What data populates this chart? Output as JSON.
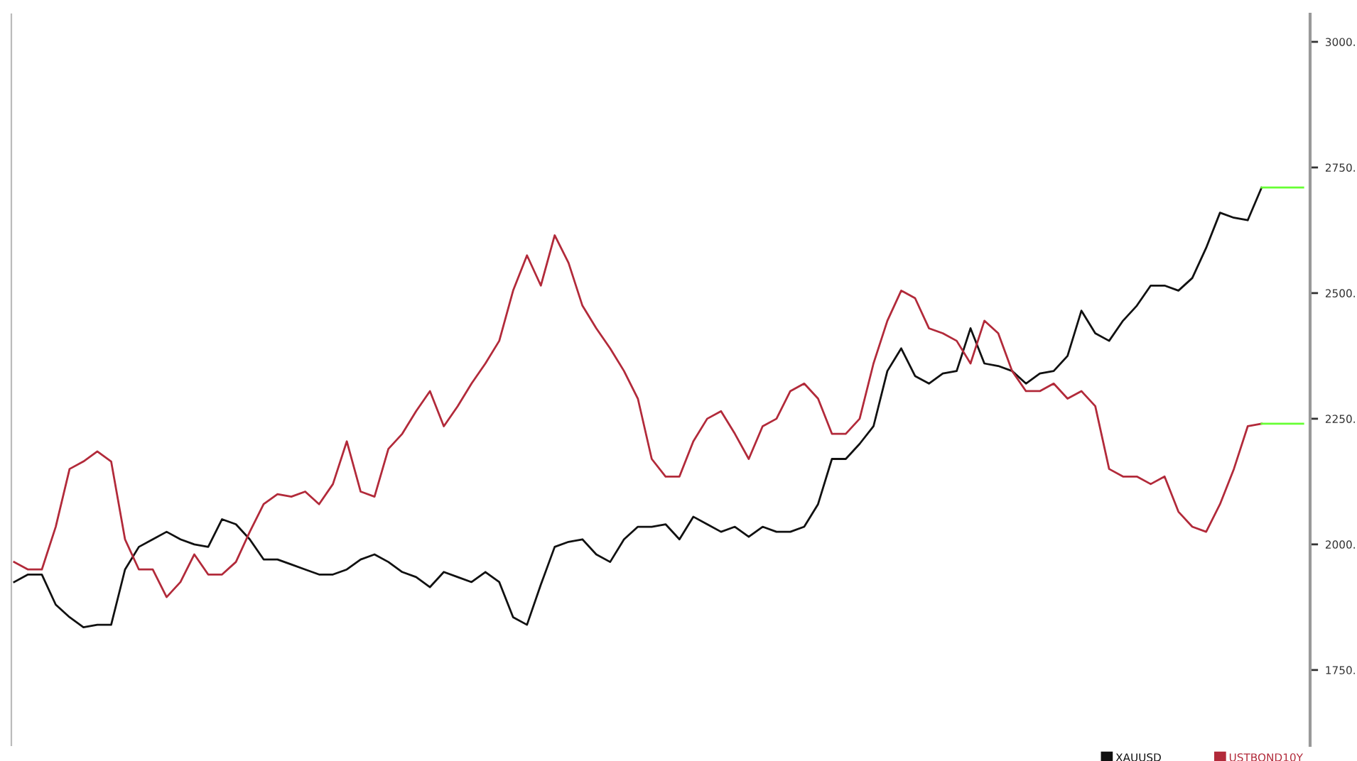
{
  "chart_data": {
    "type": "line",
    "categories": [
      null,
      null,
      null,
      null,
      null,
      null,
      null,
      null,
      null,
      null,
      null,
      null,
      null,
      null,
      null,
      null,
      null,
      null,
      null,
      null,
      null,
      null,
      null,
      null,
      null,
      null,
      null,
      null,
      null,
      null,
      null,
      null,
      null,
      null,
      null,
      null,
      null,
      null,
      null,
      null,
      null,
      null,
      null,
      null,
      null,
      null,
      null,
      null,
      null,
      null,
      null,
      null,
      null,
      null,
      null,
      null,
      null,
      null,
      null,
      null,
      null,
      null,
      null,
      null,
      null,
      null,
      null,
      null,
      null,
      null,
      null,
      null,
      null,
      null,
      null,
      null,
      null,
      null,
      null,
      null,
      null,
      null,
      null,
      null,
      null,
      null,
      null,
      null,
      null,
      null,
      null,
      null,
      null,
      null
    ],
    "series": [
      {
        "name": "XAUUSD",
        "color": "#111111",
        "values": [
          1925,
          1940,
          1940,
          1880,
          1855,
          1835,
          1840,
          1840,
          1950,
          1995,
          2010,
          2025,
          2010,
          2000,
          1995,
          2050,
          2040,
          2010,
          1970,
          1970,
          1960,
          1950,
          1940,
          1940,
          1950,
          1970,
          1980,
          1965,
          1945,
          1935,
          1915,
          1945,
          1935,
          1925,
          1945,
          1925,
          1855,
          1840,
          1920,
          1995,
          2005,
          2010,
          1980,
          1965,
          2010,
          2035,
          2035,
          2040,
          2010,
          2055,
          2040,
          2025,
          2035,
          2015,
          2035,
          2025,
          2025,
          2035,
          2080,
          2170,
          2170,
          2200,
          2235,
          2345,
          2390,
          2335,
          2320,
          2340,
          2345,
          2430,
          2360,
          2355,
          2345,
          2320,
          2340,
          2345,
          2375,
          2465,
          2420,
          2405,
          2445,
          2475,
          2515,
          2515,
          2505,
          2530,
          2590,
          2660,
          2650,
          2645,
          2710,
          null,
          null,
          null
        ]
      },
      {
        "name": "USTBOND10Y",
        "color": "#b22a3a",
        "values": [
          1965,
          1950,
          1950,
          2035,
          2150,
          2165,
          2185,
          2165,
          2010,
          1950,
          1950,
          1895,
          1925,
          1980,
          1940,
          1940,
          1965,
          2025,
          2080,
          2100,
          2095,
          2105,
          2080,
          2120,
          2205,
          2105,
          2095,
          2190,
          2220,
          2265,
          2305,
          2235,
          2275,
          2320,
          2360,
          2405,
          2505,
          2575,
          2515,
          2615,
          2560,
          2475,
          2430,
          2390,
          2345,
          2290,
          2170,
          2135,
          2135,
          2205,
          2250,
          2265,
          2220,
          2170,
          2235,
          2250,
          2305,
          2320,
          2290,
          2220,
          2220,
          2250,
          2360,
          2445,
          2505,
          2490,
          2430,
          2420,
          2405,
          2360,
          2445,
          2420,
          2345,
          2305,
          2305,
          2320,
          2290,
          2305,
          2275,
          2150,
          2135,
          2135,
          2120,
          2135,
          2065,
          2035,
          2025,
          2080,
          2150,
          2235,
          2240,
          null,
          null,
          null
        ]
      },
      {
        "color": "#66ff33",
        "values": [
          null,
          null,
          null,
          null,
          null,
          null,
          null,
          null,
          null,
          null,
          null,
          null,
          null,
          null,
          null,
          null,
          null,
          null,
          null,
          null,
          null,
          null,
          null,
          null,
          null,
          null,
          null,
          null,
          null,
          null,
          null,
          null,
          null,
          null,
          null,
          null,
          null,
          null,
          null,
          null,
          null,
          null,
          null,
          null,
          null,
          null,
          null,
          null,
          null,
          null,
          null,
          null,
          null,
          null,
          null,
          null,
          null,
          null,
          null,
          null,
          null,
          null,
          null,
          null,
          null,
          null,
          null,
          null,
          null,
          null,
          null,
          null,
          null,
          null,
          null,
          null,
          null,
          null,
          null,
          null,
          null,
          null,
          null,
          null,
          null,
          null,
          null,
          null,
          null,
          null,
          2710,
          2710,
          2710,
          2710
        ]
      },
      {
        "color": "#66ff33",
        "values": [
          null,
          null,
          null,
          null,
          null,
          null,
          null,
          null,
          null,
          null,
          null,
          null,
          null,
          null,
          null,
          null,
          null,
          null,
          null,
          null,
          null,
          null,
          null,
          null,
          null,
          null,
          null,
          null,
          null,
          null,
          null,
          null,
          null,
          null,
          null,
          null,
          null,
          null,
          null,
          null,
          null,
          null,
          null,
          null,
          null,
          null,
          null,
          null,
          null,
          null,
          null,
          null,
          null,
          null,
          null,
          null,
          null,
          null,
          null,
          null,
          null,
          null,
          null,
          null,
          null,
          null,
          null,
          null,
          null,
          null,
          null,
          null,
          null,
          null,
          null,
          null,
          null,
          null,
          null,
          null,
          null,
          null,
          null,
          null,
          null,
          null,
          null,
          null,
          null,
          null,
          2240,
          2240,
          2240,
          2240
        ]
      }
    ],
    "ylim": [
      1600,
      3055
    ],
    "yticks": [
      {
        "value": 1750,
        "label": "1750."
      },
      {
        "value": 2000,
        "label": "2000."
      },
      {
        "value": 2250,
        "label": "2250."
      },
      {
        "value": 2500,
        "label": "2500."
      },
      {
        "value": 2750,
        "label": "2750."
      },
      {
        "value": 3000,
        "label": "3000."
      }
    ],
    "legend": "bottom right",
    "grid": false,
    "tick_labels": "y",
    "line_style": "solid",
    "marker": "none"
  }
}
